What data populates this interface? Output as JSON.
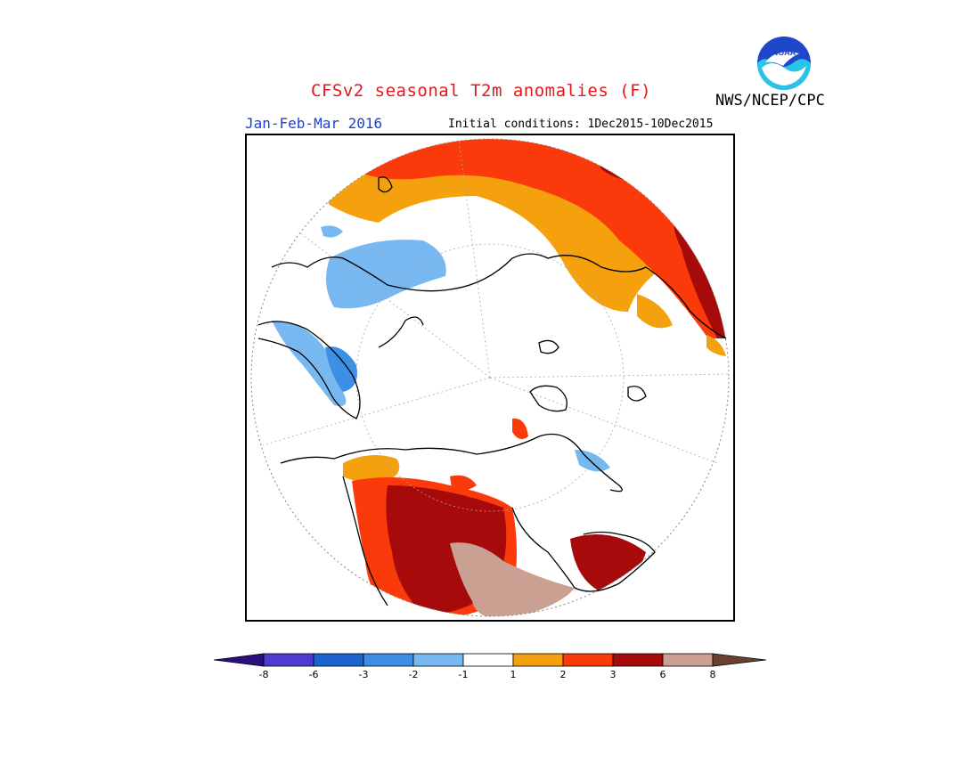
{
  "title": "CFSv2 seasonal T2m anomalies (F)",
  "period": "Jan-Feb-Mar 2016",
  "initial_conditions": "Initial conditions: 1Dec2015-10Dec2015",
  "agency": "NWS/NCEP/CPC",
  "logo_text": "NOAA",
  "colors": {
    "title": "#e8161b",
    "period": "#1c3fd6",
    "bins": [
      "#2c0f7e",
      "#4d3ccd",
      "#1d63cd",
      "#3d8fe6",
      "#78b8f1",
      "#ffffff",
      "#f5a00d",
      "#fb3a0c",
      "#a60a0a",
      "#c9a092",
      "#6b4032"
    ]
  },
  "legend": {
    "ticks": [
      "-8",
      "-6",
      "-3",
      "-2",
      "-1",
      "1",
      "2",
      "3",
      "6",
      "8"
    ]
  }
}
